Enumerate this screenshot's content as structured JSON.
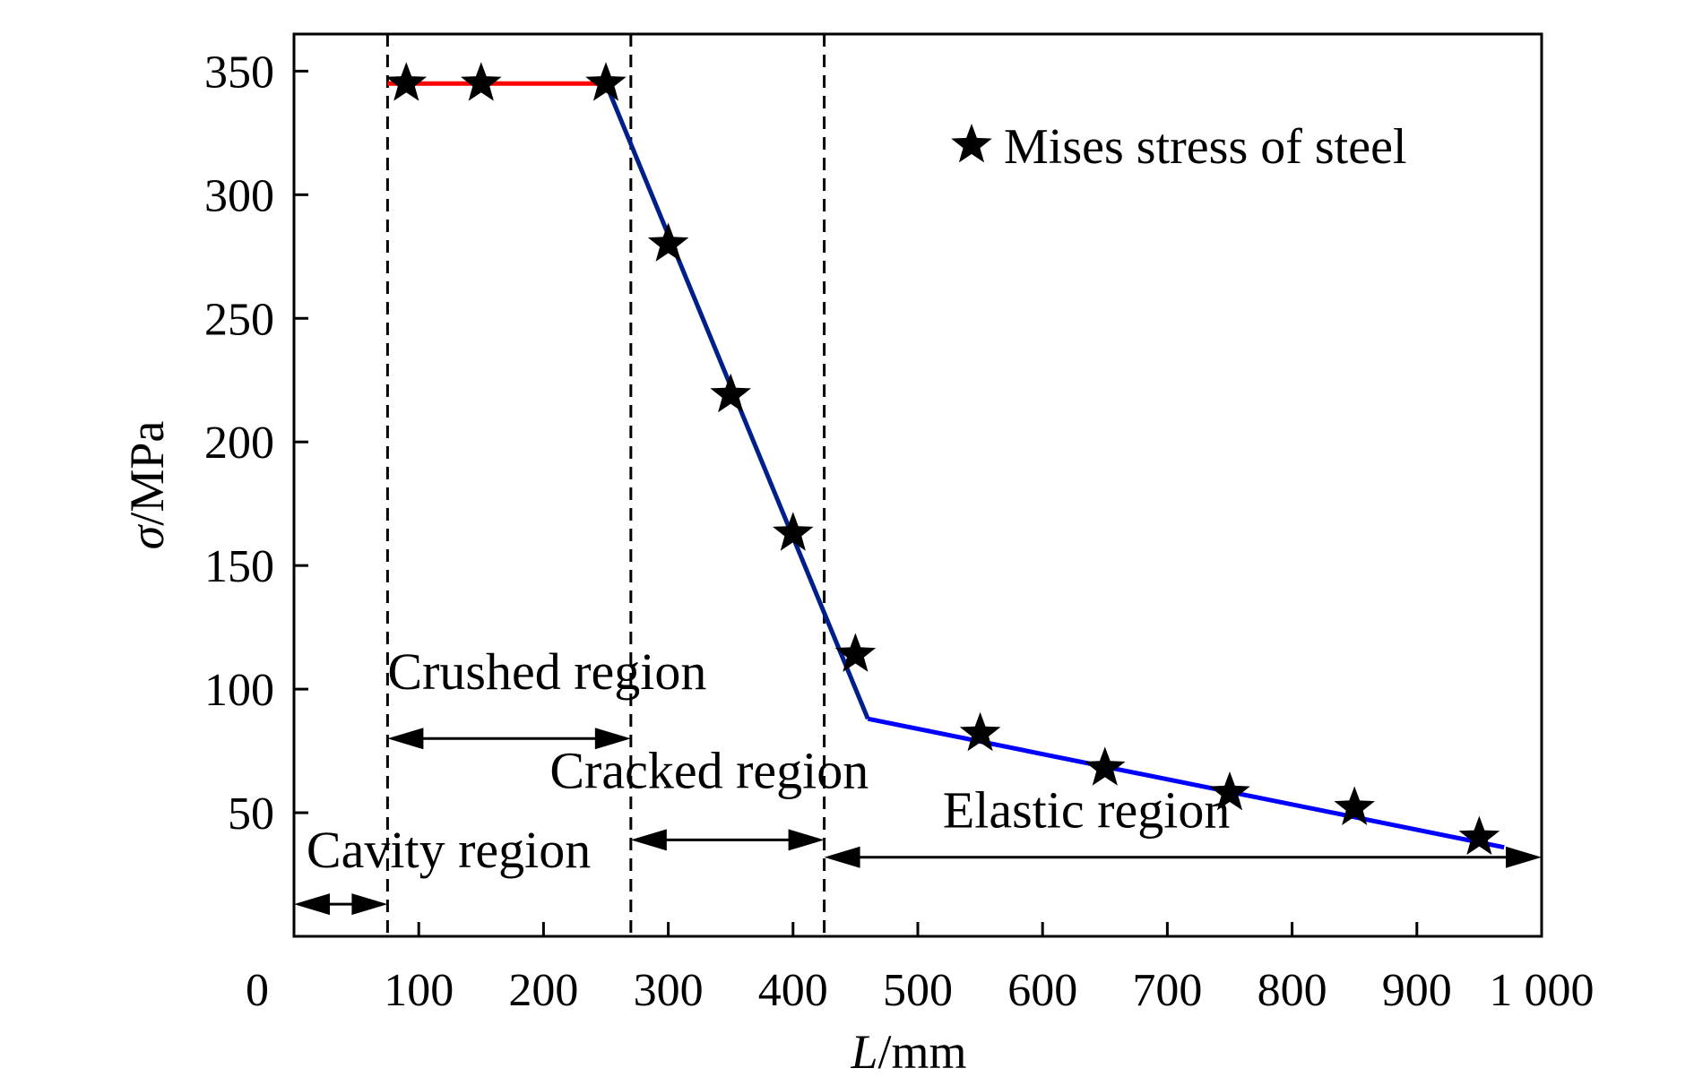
{
  "chart_data": {
    "type": "scatter",
    "title": "",
    "xlabel_italic": "L",
    "xlabel_unit": "/mm",
    "ylabel_italic": "σ",
    "ylabel_unit": "/MPa",
    "xlim": [
      0,
      1000
    ],
    "ylim": [
      0,
      365
    ],
    "x_ticks": [
      0,
      100,
      200,
      300,
      400,
      500,
      600,
      700,
      800,
      900,
      1000
    ],
    "x_tick_labels": [
      "0",
      "100",
      "200",
      "300",
      "400",
      "500",
      "600",
      "700",
      "800",
      "900",
      "1 000"
    ],
    "y_ticks": [
      50,
      100,
      150,
      200,
      250,
      300,
      350
    ],
    "y_tick_labels": [
      "50",
      "100",
      "150",
      "200",
      "250",
      "300",
      "350"
    ],
    "grid": false,
    "legend_position": "top-right",
    "series": [
      {
        "name": "Mises stress of steel",
        "marker": "star",
        "color": "#000000",
        "x": [
          90,
          150,
          250,
          300,
          350,
          400,
          450,
          550,
          650,
          750,
          850,
          950
        ],
        "y": [
          345,
          345,
          345,
          280,
          219,
          163,
          114,
          82,
          68,
          58,
          52,
          40
        ]
      }
    ],
    "fit_lines": [
      {
        "color": "#ff0000",
        "x": [
          75,
          250
        ],
        "y": [
          345,
          345
        ]
      },
      {
        "color": "#001f8a",
        "x": [
          250,
          460
        ],
        "y": [
          345,
          88
        ]
      },
      {
        "color": "#0000ff",
        "x": [
          460,
          970
        ],
        "y": [
          88,
          36
        ]
      }
    ],
    "region_boundaries_x": [
      75,
      270,
      425
    ],
    "regions": [
      {
        "label": "Cavity region",
        "x_start": 0,
        "x_end": 75,
        "arrow_y": 13,
        "label_x": 10,
        "label_y": 28
      },
      {
        "label": "Crushed region",
        "x_start": 75,
        "x_end": 270,
        "arrow_y": 80,
        "label_x": 75,
        "label_y": 100
      },
      {
        "label": "Cracked region",
        "x_start": 270,
        "x_end": 425,
        "arrow_y": 39,
        "label_x": 205,
        "label_y": 60
      },
      {
        "label": "Elastic region",
        "x_start": 425,
        "x_end": 1000,
        "arrow_y": 32,
        "label_x": 520,
        "label_y": 44
      }
    ]
  }
}
